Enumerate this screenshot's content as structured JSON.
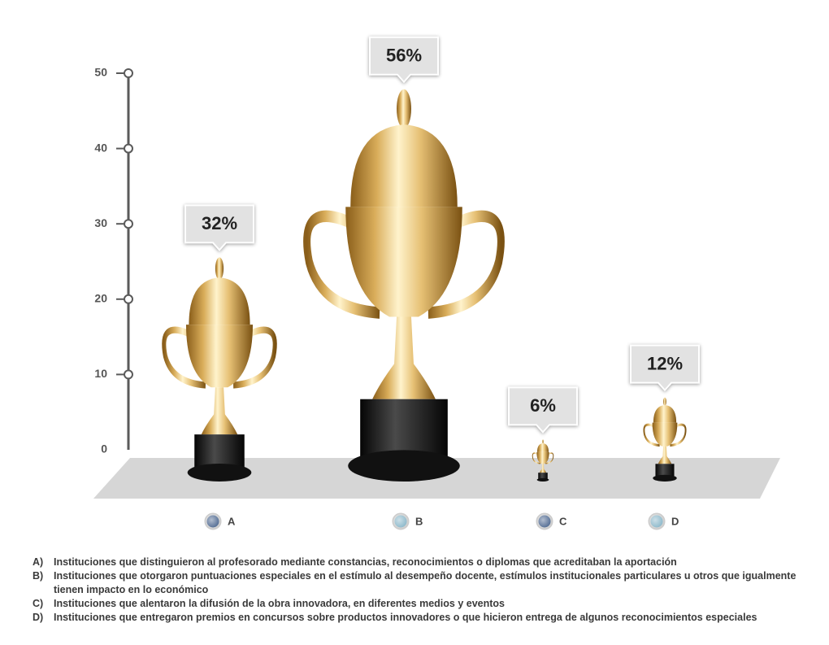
{
  "chart_data": {
    "type": "trophy",
    "categories": [
      "A",
      "B",
      "C",
      "D"
    ],
    "values": [
      32,
      56,
      6,
      12
    ],
    "value_labels": [
      "32%",
      "56%",
      "6%",
      "12%"
    ],
    "colors": [
      "#3d5a86",
      "#7fb0c4",
      "#3d5a86",
      "#7fb0c4"
    ],
    "ylim": [
      0,
      50
    ],
    "yticks": [
      0,
      10,
      20,
      30,
      40,
      50
    ],
    "descriptions": [
      {
        "key": "A)",
        "text": "Instituciones que distinguieron al profesorado mediante constancias, reconocimientos o diplomas que acreditaban la aportación"
      },
      {
        "key": "B)",
        "text": "Instituciones que otorgaron puntuaciones especiales en el estímulo al desempeño docente, estímulos institucionales particulares u otros que igualmente tienen impacto en lo económico"
      },
      {
        "key": "C)",
        "text": "Instituciones que alentaron la difusión de la obra innovadora, en diferentes medios y eventos"
      },
      {
        "key": "D)",
        "text": "Instituciones que entregaron premios en concursos sobre productos innovadores o que hicieron entrega de algunos reconocimientos especiales"
      }
    ]
  }
}
